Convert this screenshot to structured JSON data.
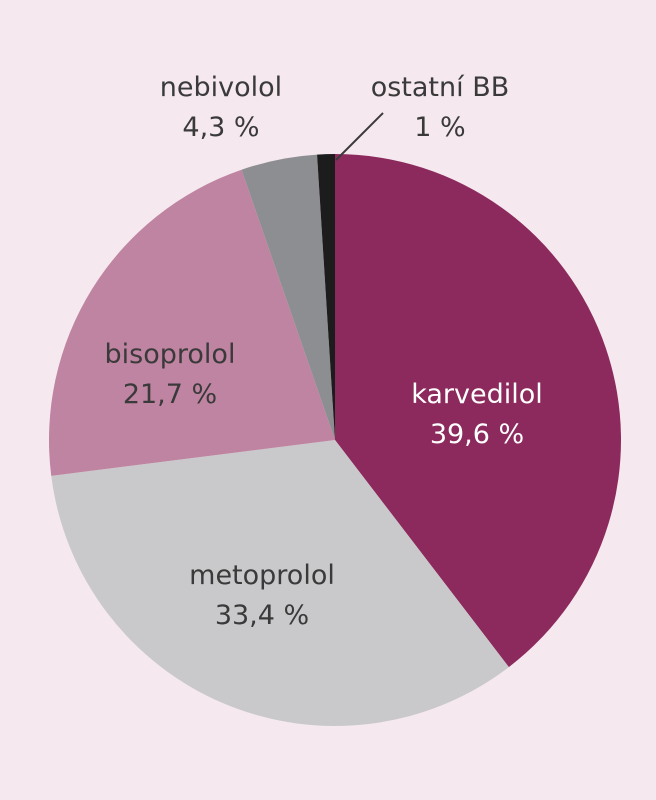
{
  "chart_data": {
    "type": "pie",
    "title": "",
    "start_angle_deg": 0,
    "direction": "clockwise",
    "slices": [
      {
        "label": "karvedilol",
        "value": 39.6,
        "value_text": "39,6 %",
        "color": "#8c2a5d",
        "text_color": "#ffffff"
      },
      {
        "label": "metoprolol",
        "value": 33.4,
        "value_text": "33,4 %",
        "color": "#c9c9cb",
        "text_color": "#3a3a3a"
      },
      {
        "label": "bisoprolol",
        "value": 21.7,
        "value_text": "21,7 %",
        "color": "#bf84a1",
        "text_color": "#3a3a3a"
      },
      {
        "label": "nebivolol",
        "value": 4.3,
        "value_text": "4,3 %",
        "color": "#8d8e91",
        "text_color": "#3a3a3a"
      },
      {
        "label": "ostatní BB",
        "value": 1.0,
        "value_text": "1 %",
        "color": "#1c1c1c",
        "text_color": "#3a3a3a"
      }
    ]
  }
}
